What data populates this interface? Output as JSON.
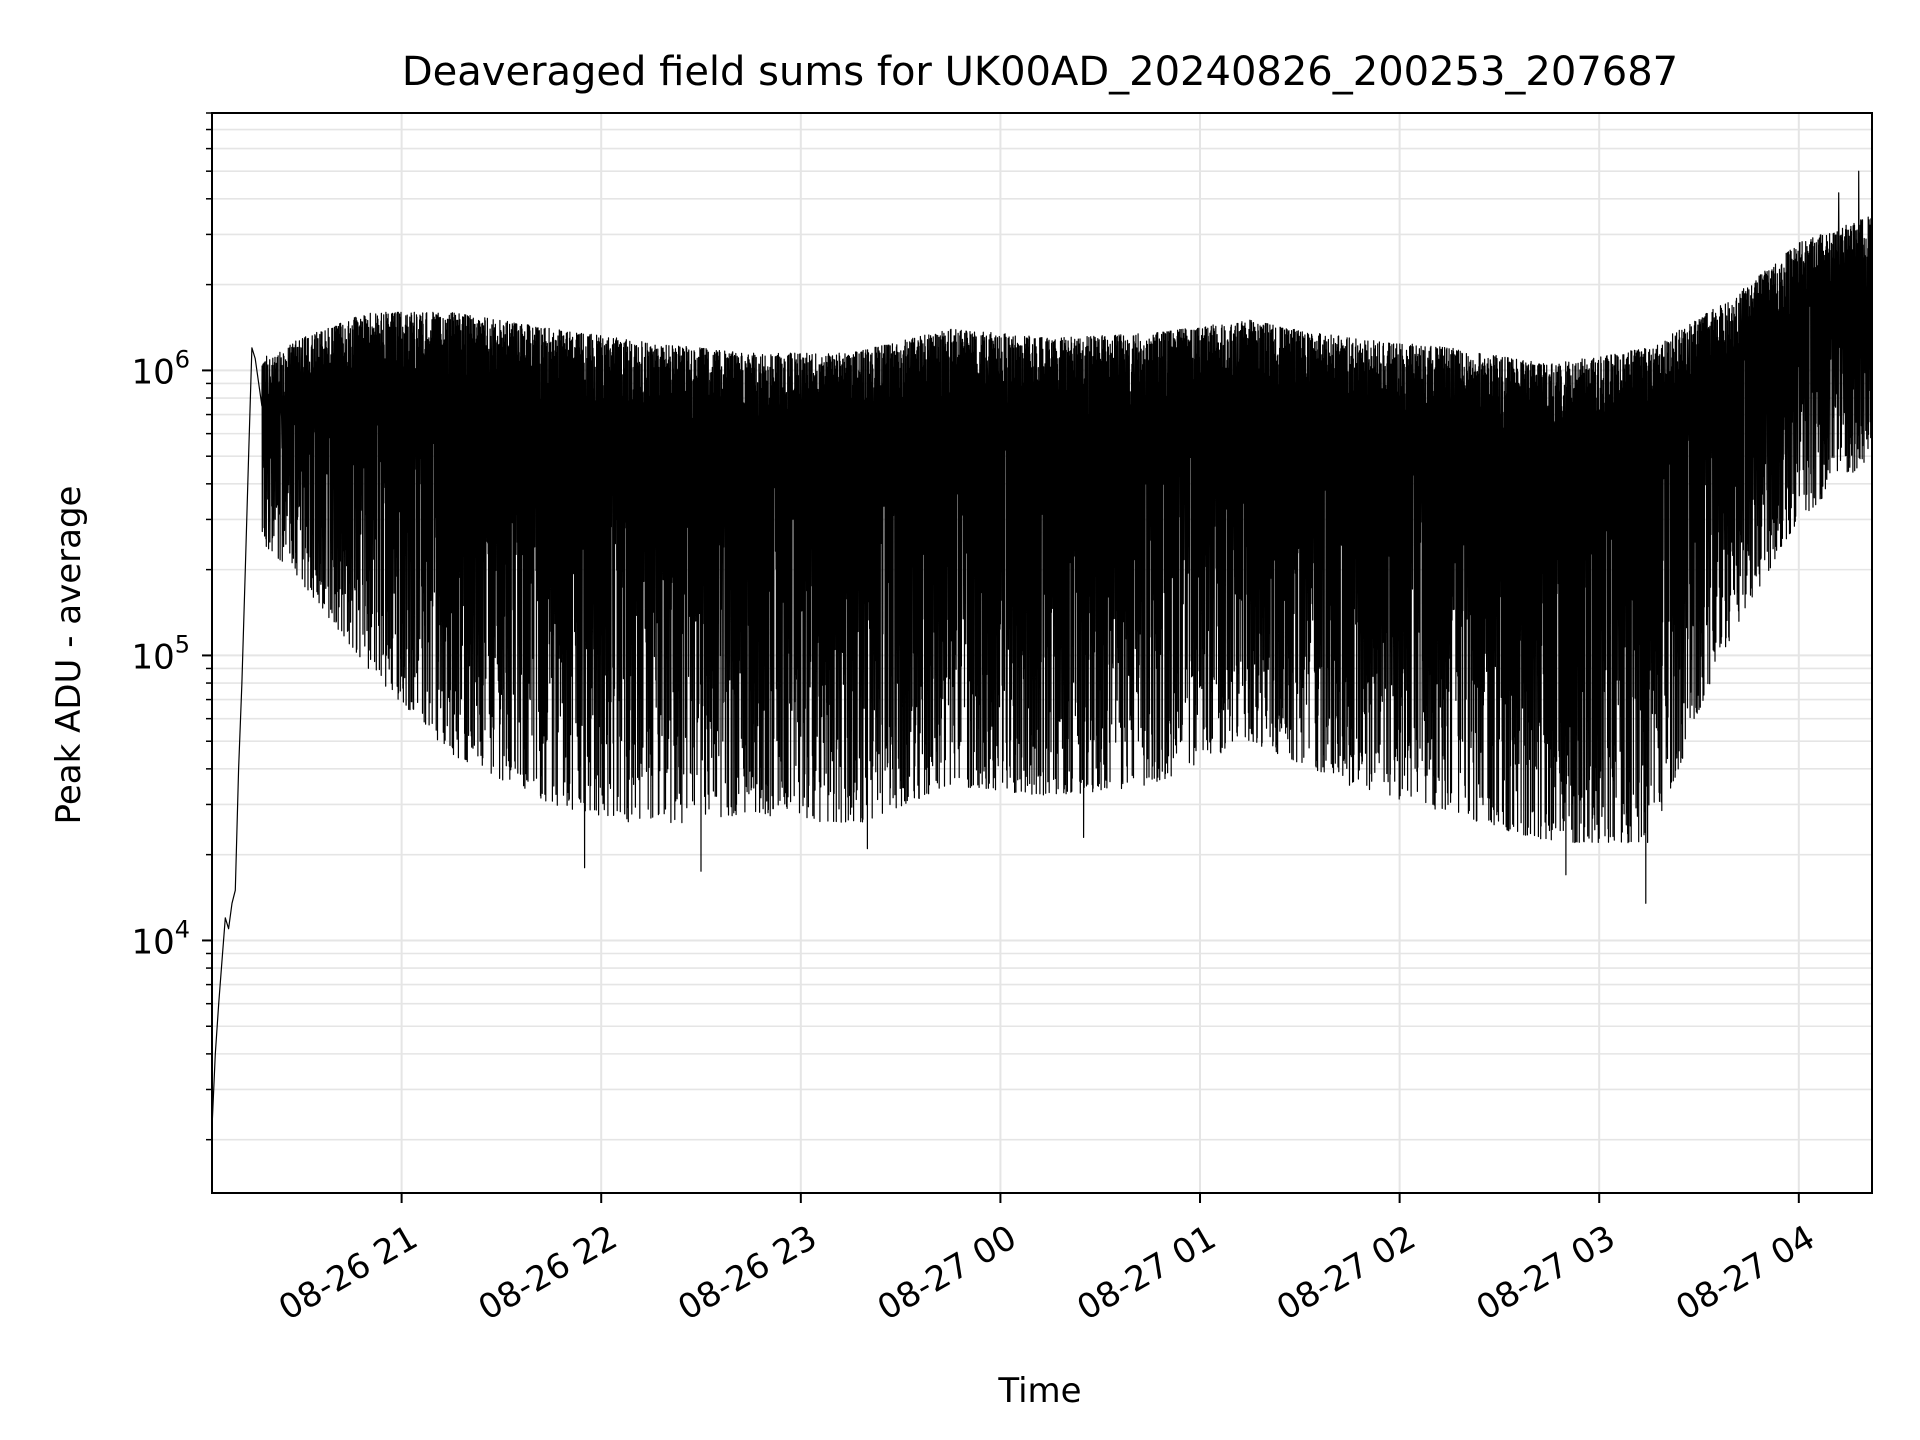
{
  "chart_data": {
    "type": "line",
    "title": "Deaveraged field sums for UK00AD_20240826_200253_207687",
    "xlabel": "Time",
    "ylabel": "Peak ADU - average",
    "yscale": "log",
    "ylim": [
      1300,
      8000000
    ],
    "xlim": [
      "2024-08-26 20:03",
      "2024-08-27 04:22"
    ],
    "grid": true,
    "line_color": "#000000",
    "grid_color": "#e5e5e5",
    "x_ticks": [
      {
        "label": "08-26 21",
        "time": "2024-08-26 21:00"
      },
      {
        "label": "08-26 22",
        "time": "2024-08-26 22:00"
      },
      {
        "label": "08-26 23",
        "time": "2024-08-26 23:00"
      },
      {
        "label": "08-27 00",
        "time": "2024-08-27 00:00"
      },
      {
        "label": "08-27 01",
        "time": "2024-08-27 01:00"
      },
      {
        "label": "08-27 02",
        "time": "2024-08-27 02:00"
      },
      {
        "label": "08-27 03",
        "time": "2024-08-27 03:00"
      },
      {
        "label": "08-27 04",
        "time": "2024-08-27 04:00"
      }
    ],
    "y_ticks": [
      {
        "base": "10",
        "exp": "4",
        "value": 10000
      },
      {
        "base": "10",
        "exp": "5",
        "value": 100000
      },
      {
        "base": "10",
        "exp": "6",
        "value": 1000000
      }
    ],
    "series": [
      {
        "points": [
          [
            "2024-08-26 20:03",
            2200
          ],
          [
            "2024-08-26 20:04",
            4000
          ],
          [
            "2024-08-26 20:05",
            6000
          ],
          [
            "2024-08-26 20:06",
            8500
          ],
          [
            "2024-08-26 20:07",
            12000
          ],
          [
            "2024-08-26 20:08",
            11000
          ],
          [
            "2024-08-26 20:09",
            13500
          ],
          [
            "2024-08-26 20:10",
            15000
          ],
          [
            "2024-08-26 20:11",
            40000
          ],
          [
            "2024-08-26 20:12",
            80000
          ],
          [
            "2024-08-26 20:13",
            200000
          ],
          [
            "2024-08-26 20:14",
            500000
          ],
          [
            "2024-08-26 20:15",
            1200000
          ],
          [
            "2024-08-26 20:16",
            1100000
          ],
          [
            "2024-08-26 20:18",
            750000
          ]
        ],
        "oscillation": [
          {
            "time": "2024-08-26 20:18",
            "upper": 1100000,
            "lower": 250000
          },
          {
            "time": "2024-08-26 20:30",
            "upper": 1300000,
            "lower": 180000
          },
          {
            "time": "2024-08-26 20:50",
            "upper": 1600000,
            "lower": 90000
          },
          {
            "time": "2024-08-26 21:15",
            "upper": 1600000,
            "lower": 45000
          },
          {
            "time": "2024-08-26 21:45",
            "upper": 1400000,
            "lower": 30000
          },
          {
            "time": "2024-08-26 22:15",
            "upper": 1250000,
            "lower": 25000
          },
          {
            "time": "2024-08-26 22:45",
            "upper": 1150000,
            "lower": 28000
          },
          {
            "time": "2024-08-26 23:15",
            "upper": 1150000,
            "lower": 25000
          },
          {
            "time": "2024-08-26 23:45",
            "upper": 1400000,
            "lower": 35000
          },
          {
            "time": "2024-08-27 00:15",
            "upper": 1300000,
            "lower": 32000
          },
          {
            "time": "2024-08-27 00:45",
            "upper": 1350000,
            "lower": 35000
          },
          {
            "time": "2024-08-27 01:15",
            "upper": 1500000,
            "lower": 50000
          },
          {
            "time": "2024-08-27 01:45",
            "upper": 1300000,
            "lower": 35000
          },
          {
            "time": "2024-08-27 02:15",
            "upper": 1200000,
            "lower": 28000
          },
          {
            "time": "2024-08-27 02:45",
            "upper": 1050000,
            "lower": 22000
          },
          {
            "time": "2024-08-27 03:15",
            "upper": 1200000,
            "lower": 22000
          },
          {
            "time": "2024-08-27 03:40",
            "upper": 1800000,
            "lower": 120000
          },
          {
            "time": "2024-08-27 04:00",
            "upper": 2800000,
            "lower": 300000
          },
          {
            "time": "2024-08-27 04:22",
            "upper": 3500000,
            "lower": 500000
          }
        ],
        "minima_marked": [
          [
            "2024-08-26 21:55",
            18000
          ],
          [
            "2024-08-26 22:30",
            17500
          ],
          [
            "2024-08-26 23:20",
            21000
          ],
          [
            "2024-08-27 00:25",
            23000
          ],
          [
            "2024-08-27 02:50",
            17000
          ],
          [
            "2024-08-27 03:14",
            13500
          ]
        ],
        "maxima_marked": [
          [
            "2024-08-27 04:18",
            5000000
          ],
          [
            "2024-08-27 04:12",
            4200000
          ]
        ]
      }
    ]
  }
}
